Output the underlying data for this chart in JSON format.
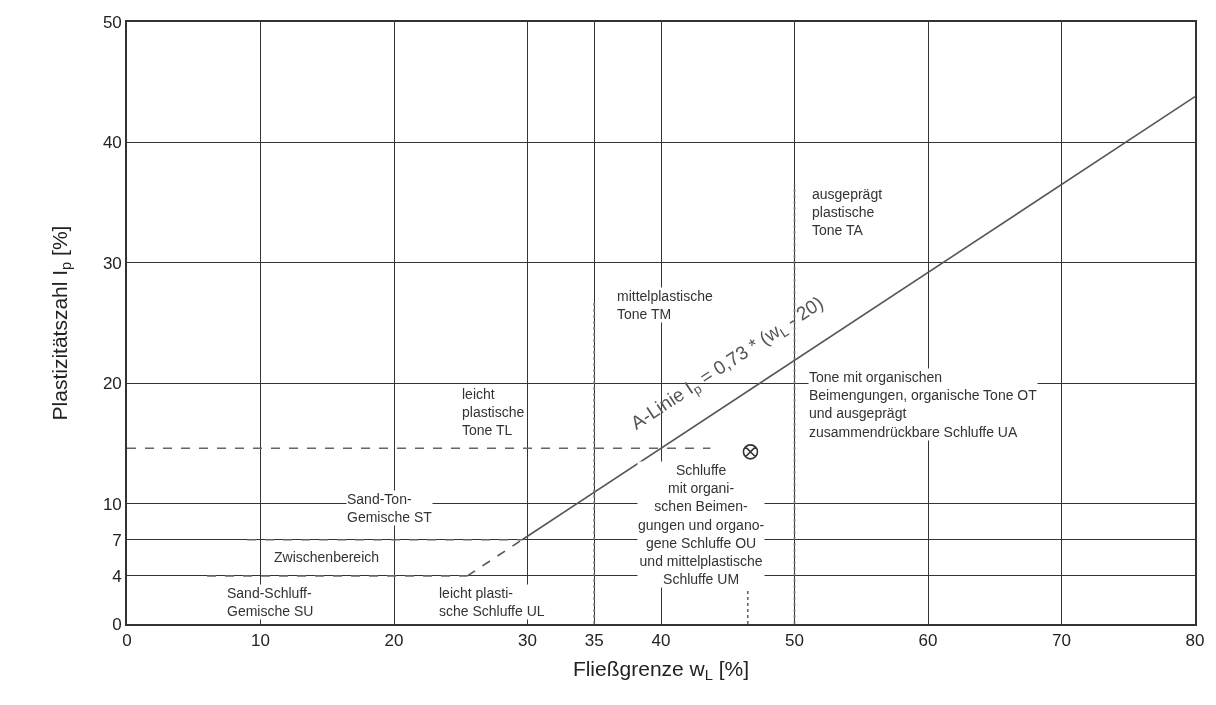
{
  "chart_data": {
    "type": "line",
    "xlabel": "Fließgrenze w$_{L}$ [%]",
    "ylabel": "Plastizitätszahl I$_{p}$ [%]",
    "xlim": [
      0,
      80
    ],
    "xticks": [
      0,
      10,
      20,
      30,
      35,
      40,
      50,
      60,
      70,
      80
    ],
    "ylim": [
      0,
      50
    ],
    "yticks": [
      0,
      4,
      7,
      10,
      20,
      30,
      40,
      50
    ],
    "grid": true,
    "series": [
      {
        "color": "#555555",
        "line_style": "solid",
        "x": [
          29.6,
          80
        ],
        "values": [
          7,
          43.8
        ]
      },
      {
        "color": "#555555",
        "line_style": "dashed",
        "x": [
          25.5,
          29.6
        ],
        "values": [
          4,
          7
        ]
      },
      {
        "color": "#666666",
        "line_style": "dashed",
        "x": [
          0,
          43.7
        ],
        "values": [
          14.6,
          14.6
        ]
      },
      {
        "color": "#666666",
        "line_style": "dashed",
        "x": [
          9,
          29.6
        ],
        "values": [
          7,
          7
        ]
      },
      {
        "color": "#666666",
        "line_style": "dashed",
        "x": [
          6,
          25.5
        ],
        "values": [
          4,
          4
        ]
      },
      {
        "color": "#666666",
        "line_style": "dotted",
        "x": [
          35,
          35
        ],
        "values": [
          0,
          26.9
        ]
      },
      {
        "color": "#666666",
        "line_style": "dotted",
        "x": [
          50,
          50
        ],
        "values": [
          0,
          36.5
        ]
      },
      {
        "color": "#666666",
        "line_style": "dotted",
        "x": [
          46.5,
          46.5
        ],
        "values": [
          0,
          2.8
        ]
      },
      {
        "type": "scatter",
        "color": "#333333",
        "marker": "cross",
        "x": [
          46.7
        ],
        "values": [
          14.3
        ]
      }
    ],
    "annotations": [
      "A-Linie I$_{p}$ = 0,73 * (w$_{L}$ - 20)",
      "leicht\nplastische\nTone TL",
      "mittelplastische\nTone TM",
      "ausgeprägt\nplastische\nTone TA",
      "Tone mit organischen\nBeimengungen, organische Tone OT\nund ausgeprägt\nzusammendrückbare Schluffe UA",
      "Schluffe\nmit organi-\nschen Beimen-\ngungen und organo-\ngene Schluffe OU\nund mittelplastische\nSchluffe UM",
      "Sand-Ton-\nGemische ST",
      "Zwischenbereich",
      "Sand-Schluff-\nGemische SU",
      "leicht plasti-\nsche Schluffe UL"
    ]
  }
}
